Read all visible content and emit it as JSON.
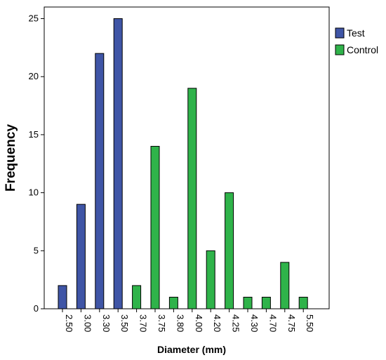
{
  "chart_data": {
    "type": "bar",
    "title": "",
    "xlabel": "Diameter (mm)",
    "ylabel": "Frequency",
    "ylim": [
      0,
      26
    ],
    "yticks": [
      0,
      5,
      10,
      15,
      20,
      25
    ],
    "categories": [
      "2.50",
      "3.00",
      "3.30",
      "3.50",
      "3.70",
      "3.75",
      "3.80",
      "4.00",
      "4.20",
      "4.25",
      "4.30",
      "4.70",
      "4.75",
      "5.50"
    ],
    "series": [
      {
        "name": "Test",
        "color": "#3f55a6",
        "values": [
          2,
          9,
          22,
          25,
          0,
          0,
          0,
          0,
          0,
          0,
          0,
          0,
          0,
          0
        ]
      },
      {
        "name": "Control",
        "color": "#2fb34a",
        "values": [
          0,
          0,
          0,
          0,
          2,
          14,
          1,
          19,
          5,
          10,
          1,
          1,
          4,
          1
        ]
      }
    ],
    "grid": false,
    "legend": "top-right"
  }
}
